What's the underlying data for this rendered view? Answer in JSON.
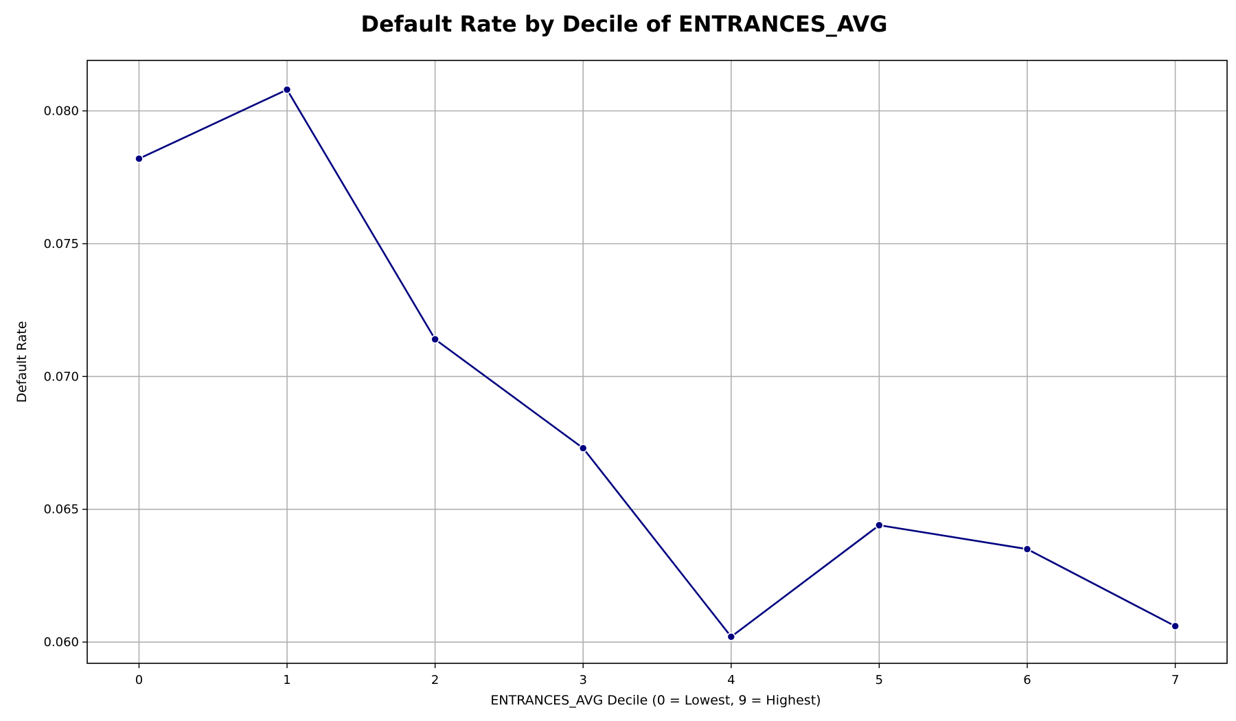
{
  "chart_data": {
    "type": "line",
    "title": "Default Rate by Decile of ENTRANCES_AVG",
    "xlabel": "ENTRANCES_AVG Decile (0 = Lowest, 9 = Highest)",
    "ylabel": "Default Rate",
    "x": [
      0,
      1,
      2,
      3,
      4,
      5,
      6,
      7
    ],
    "xticks": [
      "0",
      "1",
      "2",
      "3",
      "4",
      "5",
      "6",
      "7"
    ],
    "yticks": [
      0.06,
      0.065,
      0.07,
      0.075,
      0.08
    ],
    "ytick_labels": [
      "0.060",
      "0.065",
      "0.070",
      "0.075",
      "0.080"
    ],
    "xlim": [
      -0.35,
      7.35
    ],
    "ylim": [
      0.0592,
      0.0819
    ],
    "series": [
      {
        "values": [
          0.0782,
          0.0808,
          0.0714,
          0.0673,
          0.0602,
          0.0644,
          0.0635,
          0.0606
        ],
        "color": "#000080",
        "marker": "circle"
      }
    ],
    "grid": true,
    "legend": "none"
  }
}
